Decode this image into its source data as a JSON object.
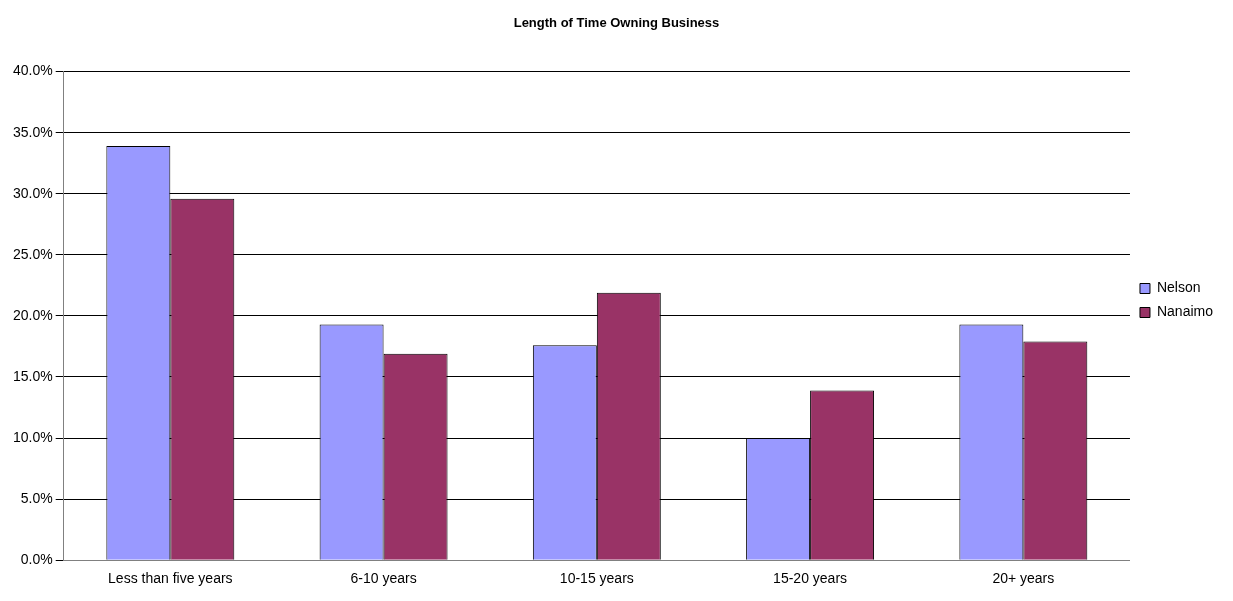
{
  "chart_data": {
    "type": "bar",
    "title": "Length of Time Owning Business",
    "categories": [
      "Less than five years",
      "6-10 years",
      "10-15 years",
      "15-20 years",
      "20+ years"
    ],
    "series": [
      {
        "name": "Nelson",
        "color": "#9999ff",
        "values": [
          33.9,
          19.3,
          17.6,
          10.0,
          19.3
        ]
      },
      {
        "name": "Nanaimo",
        "color": "#993366",
        "values": [
          29.6,
          16.9,
          21.9,
          13.9,
          17.9
        ]
      }
    ],
    "ylim": [
      0,
      40
    ],
    "yticks": [
      {
        "value": 0,
        "label": "0.0%"
      },
      {
        "value": 5,
        "label": "5.0%"
      },
      {
        "value": 10,
        "label": "10.0%"
      },
      {
        "value": 15,
        "label": "15.0%"
      },
      {
        "value": 20,
        "label": "20.0%"
      },
      {
        "value": 25,
        "label": "25.0%"
      },
      {
        "value": 30,
        "label": "30.0%"
      },
      {
        "value": 35,
        "label": "35.0%"
      },
      {
        "value": 40,
        "label": "40.0%"
      }
    ],
    "grid": "y",
    "legend": "right"
  }
}
